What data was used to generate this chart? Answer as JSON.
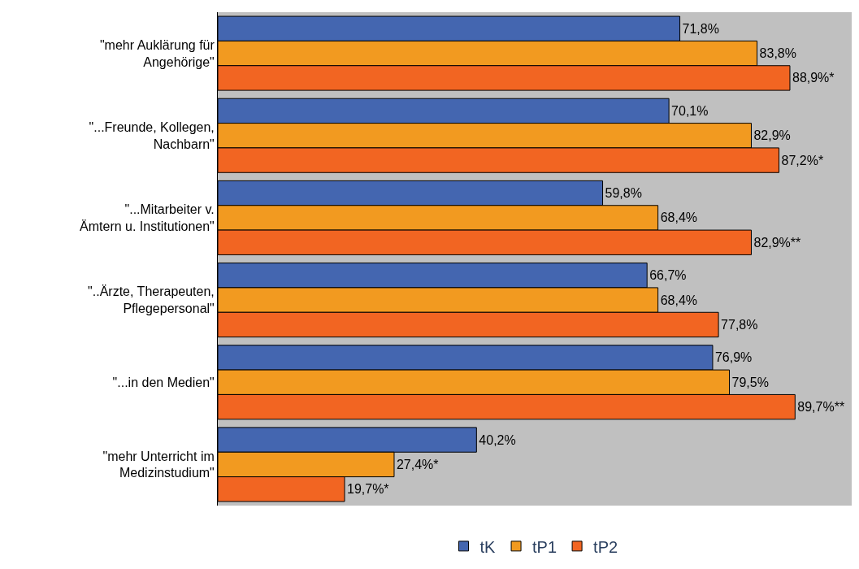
{
  "chart_data": {
    "type": "bar",
    "orientation": "horizontal",
    "categories": [
      "\"mehr Auklärung für Angehörige\"",
      "\"...Freunde, Kollegen, Nachbarn\"",
      "\"...Mitarbeiter v. Ämtern u. Institutionen\"",
      "\"..Ärzte, Therapeuten, Pflegepersonal\"",
      "\"...in den Medien\"",
      "\"mehr Unterricht im Medizinstudium\""
    ],
    "series": [
      {
        "name": "tK",
        "color": "#4466b0",
        "values": [
          71.8,
          70.1,
          59.8,
          66.7,
          76.9,
          40.2
        ],
        "value_labels": [
          "71,8%",
          "70,1%",
          "59,8%",
          "66,7%",
          "76,9%",
          "40,2%"
        ]
      },
      {
        "name": "tP1",
        "color": "#f29a20",
        "values": [
          83.8,
          82.9,
          68.4,
          68.4,
          79.5,
          27.4
        ],
        "value_labels": [
          "83,8%",
          "82,9%",
          "68,4%",
          "68,4%",
          "79,5%",
          "27,4%*"
        ]
      },
      {
        "name": "tP2",
        "color": "#f26522",
        "values": [
          88.9,
          87.2,
          82.9,
          77.8,
          89.7,
          19.7
        ],
        "value_labels": [
          "88,9%*",
          "87,2%*",
          "82,9%**",
          "77,8%",
          "89,7%**",
          "19,7%*"
        ]
      }
    ],
    "xlim": [
      0,
      98.5
    ],
    "grid": false,
    "legend": "bottom"
  }
}
